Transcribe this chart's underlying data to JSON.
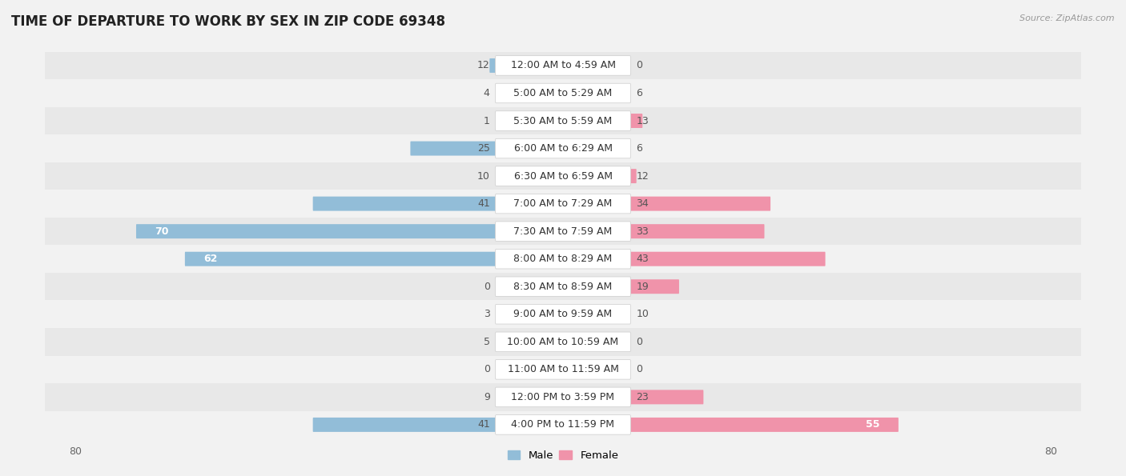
{
  "title": "TIME OF DEPARTURE TO WORK BY SEX IN ZIP CODE 69348",
  "source": "Source: ZipAtlas.com",
  "categories": [
    "12:00 AM to 4:59 AM",
    "5:00 AM to 5:29 AM",
    "5:30 AM to 5:59 AM",
    "6:00 AM to 6:29 AM",
    "6:30 AM to 6:59 AM",
    "7:00 AM to 7:29 AM",
    "7:30 AM to 7:59 AM",
    "8:00 AM to 8:29 AM",
    "8:30 AM to 8:59 AM",
    "9:00 AM to 9:59 AM",
    "10:00 AM to 10:59 AM",
    "11:00 AM to 11:59 AM",
    "12:00 PM to 3:59 PM",
    "4:00 PM to 11:59 PM"
  ],
  "male": [
    12,
    4,
    1,
    25,
    10,
    41,
    70,
    62,
    0,
    3,
    5,
    0,
    9,
    41
  ],
  "female": [
    0,
    6,
    13,
    6,
    12,
    34,
    33,
    43,
    19,
    10,
    0,
    0,
    23,
    55
  ],
  "male_color": "#92BDD8",
  "female_color": "#F093AA",
  "male_color_dark": "#6BA3C8",
  "female_color_dark": "#E8708A",
  "male_label": "Male",
  "female_label": "Female",
  "x_max": 80,
  "title_fontsize": 12,
  "cat_fontsize": 9,
  "value_fontsize": 9,
  "tick_fontsize": 9,
  "source_fontsize": 8
}
